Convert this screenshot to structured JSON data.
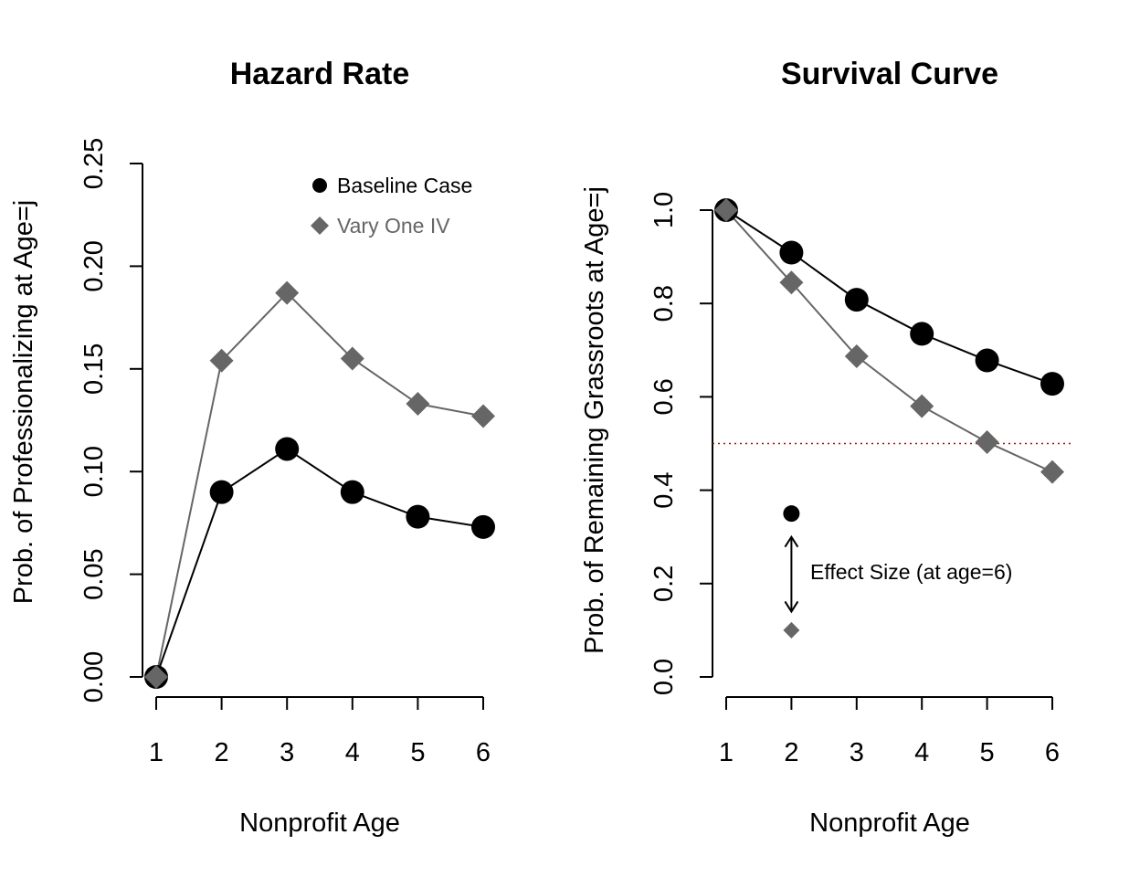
{
  "chart_data": [
    {
      "type": "line",
      "title": "Hazard Rate",
      "xlabel": "Nonprofit Age",
      "ylabel": "Prob. of Professionalizing at Age=j",
      "x": [
        1,
        2,
        3,
        4,
        5,
        6
      ],
      "xticks": [
        "1",
        "2",
        "3",
        "4",
        "5",
        "6"
      ],
      "yticks": [
        "0.00",
        "0.05",
        "0.10",
        "0.15",
        "0.20",
        "0.25"
      ],
      "ylim": [
        0,
        0.25
      ],
      "series": [
        {
          "name": "Baseline Case",
          "marker": "circle",
          "color": "#000000",
          "values": [
            0.0,
            0.09,
            0.111,
            0.09,
            0.078,
            0.073
          ]
        },
        {
          "name": "Vary One IV",
          "marker": "diamond",
          "color": "#666666",
          "values": [
            0.0,
            0.154,
            0.187,
            0.155,
            0.133,
            0.127
          ]
        }
      ],
      "legend": {
        "placement": "top-right",
        "items": [
          {
            "label": "Baseline Case",
            "marker": "circle",
            "color": "#000000"
          },
          {
            "label": "Vary One IV",
            "marker": "diamond",
            "color": "#666666"
          }
        ]
      },
      "grid": false
    },
    {
      "type": "line",
      "title": "Survival Curve",
      "xlabel": "Nonprofit Age",
      "ylabel": "Prob. of Remaining Grassroots at Age=j",
      "x": [
        1,
        2,
        3,
        4,
        5,
        6
      ],
      "xticks": [
        "1",
        "2",
        "3",
        "4",
        "5",
        "6"
      ],
      "yticks": [
        "0.0",
        "0.2",
        "0.4",
        "0.6",
        "0.8",
        "1.0"
      ],
      "ylim": [
        0,
        1.0
      ],
      "series": [
        {
          "name": "Baseline Case",
          "marker": "circle",
          "color": "#000000",
          "values": [
            1.0,
            0.909,
            0.808,
            0.735,
            0.678,
            0.628
          ]
        },
        {
          "name": "Vary One IV",
          "marker": "diamond",
          "color": "#666666",
          "values": [
            1.0,
            0.845,
            0.687,
            0.58,
            0.503,
            0.439
          ]
        }
      ],
      "reference_line": {
        "y": 0.5,
        "color": "#cc0000",
        "style": "dotted"
      },
      "annotation": {
        "text": "Effect Size (at age=6)",
        "marker_x": 2,
        "circle_y": 0.35,
        "diamond_y": 0.1,
        "arrow_top_y": 0.3,
        "arrow_bottom_y": 0.14
      },
      "grid": false
    }
  ]
}
